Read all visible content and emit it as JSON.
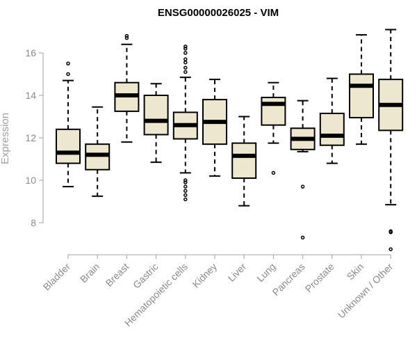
{
  "chart_data": {
    "type": "boxplot",
    "title": "ENSG00000026025 - VIM",
    "xlabel": "",
    "ylabel": "Expression",
    "ylim": [
      6.5,
      17.2
    ],
    "yticks": [
      8,
      10,
      12,
      14,
      16
    ],
    "grid": false,
    "box_color": "#ede7cf",
    "line_color": "#000000",
    "categories": [
      "Bladder",
      "Brain",
      "Breast",
      "Gastric",
      "Hematopoietic cells",
      "Kidney",
      "Liver",
      "Lung",
      "Pancreas",
      "Prostate",
      "Skin",
      "Unknown / Other"
    ],
    "boxes": [
      {
        "min": 9.7,
        "q1": 10.8,
        "median": 11.3,
        "q3": 12.4,
        "max": 14.7,
        "outliers": [
          15.0,
          15.5
        ]
      },
      {
        "min": 9.25,
        "q1": 10.5,
        "median": 11.2,
        "q3": 11.7,
        "max": 13.45,
        "outliers": []
      },
      {
        "min": 11.8,
        "q1": 13.25,
        "median": 14.0,
        "q3": 14.6,
        "max": 16.4,
        "outliers": [
          16.7,
          16.8
        ]
      },
      {
        "min": 10.85,
        "q1": 12.15,
        "median": 12.8,
        "q3": 14.0,
        "max": 14.55,
        "outliers": []
      },
      {
        "min": 10.35,
        "q1": 11.95,
        "median": 12.6,
        "q3": 13.2,
        "max": 14.85,
        "outliers": [
          9.1,
          9.3,
          9.5,
          9.7,
          9.9,
          10.0,
          15.1,
          15.3,
          15.55,
          15.7,
          16.0,
          16.2,
          16.3
        ]
      },
      {
        "min": 10.2,
        "q1": 11.7,
        "median": 12.75,
        "q3": 13.8,
        "max": 14.75,
        "outliers": []
      },
      {
        "min": 8.8,
        "q1": 10.1,
        "median": 11.15,
        "q3": 11.75,
        "max": 13.0,
        "outliers": []
      },
      {
        "min": 11.75,
        "q1": 12.6,
        "median": 13.6,
        "q3": 13.9,
        "max": 14.6,
        "outliers": [
          10.35
        ]
      },
      {
        "min": 11.35,
        "q1": 11.45,
        "median": 11.95,
        "q3": 12.45,
        "max": 13.75,
        "outliers": [
          9.7,
          7.3
        ]
      },
      {
        "min": 10.8,
        "q1": 11.65,
        "median": 12.1,
        "q3": 13.15,
        "max": 14.8,
        "outliers": []
      },
      {
        "min": 11.7,
        "q1": 12.95,
        "median": 14.45,
        "q3": 15.0,
        "max": 16.85,
        "outliers": []
      },
      {
        "min": 8.85,
        "q1": 12.35,
        "median": 13.55,
        "q3": 14.75,
        "max": 17.1,
        "outliers": [
          7.6,
          7.55,
          6.75
        ]
      }
    ]
  }
}
